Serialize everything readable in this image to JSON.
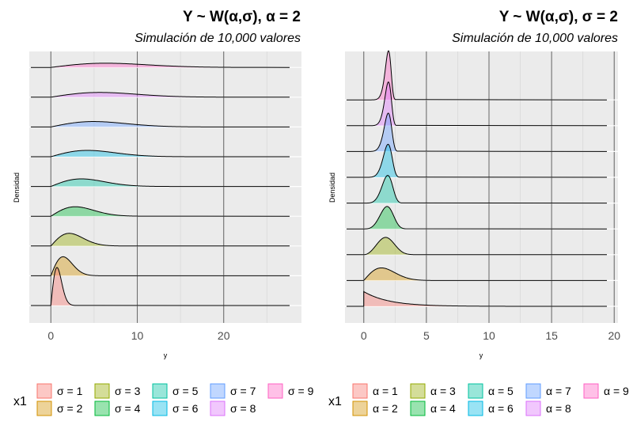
{
  "chart_data": [
    {
      "type": "area",
      "subtype": "ridgeline-density",
      "title": "Y ~ W(α,σ), α = 2",
      "subtitle": "Simulación de 10,000 valores",
      "xlabel": "y",
      "ylabel": "Densidad",
      "xlim": [
        -2.5,
        29
      ],
      "xticks": [
        0,
        10,
        20
      ],
      "grid": true,
      "distribution": "weibull",
      "fixed_shape": 2,
      "legend_title": "x1",
      "legend_position": "bottom",
      "series": [
        {
          "name": "σ = 1",
          "shape": 2,
          "scale": 1,
          "color": "#F8766D"
        },
        {
          "name": "σ = 2",
          "shape": 2,
          "scale": 2,
          "color": "#D39200"
        },
        {
          "name": "σ = 3",
          "shape": 2,
          "scale": 3,
          "color": "#93AA00"
        },
        {
          "name": "σ = 4",
          "shape": 2,
          "scale": 4,
          "color": "#00BA38"
        },
        {
          "name": "σ = 5",
          "shape": 2,
          "scale": 5,
          "color": "#00C19F"
        },
        {
          "name": "σ = 6",
          "shape": 2,
          "scale": 6,
          "color": "#00B9E3"
        },
        {
          "name": "σ = 7",
          "shape": 2,
          "scale": 7,
          "color": "#619CFF"
        },
        {
          "name": "σ = 8",
          "shape": 2,
          "scale": 8,
          "color": "#DB72FB"
        },
        {
          "name": "σ = 9",
          "shape": 2,
          "scale": 9,
          "color": "#FF61C3"
        }
      ]
    },
    {
      "type": "area",
      "subtype": "ridgeline-density",
      "title": "Y ~ W(α,σ), σ = 2",
      "subtitle": "Simulación de 10,000 valores",
      "xlabel": "y",
      "ylabel": "Densidad",
      "xlim": [
        -1.5,
        20.3
      ],
      "xticks": [
        0,
        5,
        10,
        15,
        20
      ],
      "grid": true,
      "distribution": "weibull",
      "fixed_scale": 2,
      "legend_title": "x1",
      "legend_position": "bottom",
      "series": [
        {
          "name": "α = 1",
          "shape": 1,
          "scale": 2,
          "color": "#F8766D"
        },
        {
          "name": "α = 2",
          "shape": 2,
          "scale": 2,
          "color": "#D39200"
        },
        {
          "name": "α = 3",
          "shape": 3,
          "scale": 2,
          "color": "#93AA00"
        },
        {
          "name": "α = 4",
          "shape": 4,
          "scale": 2,
          "color": "#00BA38"
        },
        {
          "name": "α = 5",
          "shape": 5,
          "scale": 2,
          "color": "#00C19F"
        },
        {
          "name": "α = 6",
          "shape": 6,
          "scale": 2,
          "color": "#00B9E3"
        },
        {
          "name": "α = 7",
          "shape": 7,
          "scale": 2,
          "color": "#619CFF"
        },
        {
          "name": "α = 8",
          "shape": 8,
          "scale": 2,
          "color": "#DB72FB"
        },
        {
          "name": "α = 9",
          "shape": 9,
          "scale": 2,
          "color": "#FF61C3"
        }
      ]
    }
  ]
}
